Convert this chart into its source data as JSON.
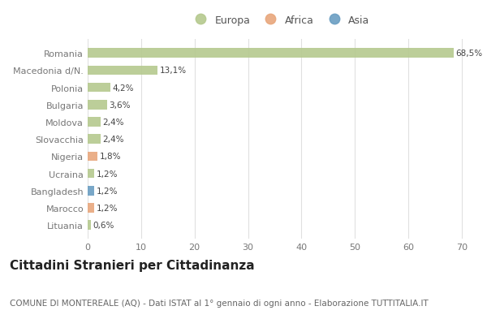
{
  "categories": [
    "Romania",
    "Macedonia d/N.",
    "Polonia",
    "Bulgaria",
    "Moldova",
    "Slovacchia",
    "Nigeria",
    "Ucraina",
    "Bangladesh",
    "Marocco",
    "Lituania"
  ],
  "values": [
    68.5,
    13.1,
    4.2,
    3.6,
    2.4,
    2.4,
    1.8,
    1.2,
    1.2,
    1.2,
    0.6
  ],
  "labels": [
    "68,5%",
    "13,1%",
    "4,2%",
    "3,6%",
    "2,4%",
    "2,4%",
    "1,8%",
    "1,2%",
    "1,2%",
    "1,2%",
    "0,6%"
  ],
  "colors": [
    "#b5c98e",
    "#b5c98e",
    "#b5c98e",
    "#b5c98e",
    "#b5c98e",
    "#b5c98e",
    "#e8a77c",
    "#b5c98e",
    "#6a9ec2",
    "#e8a77c",
    "#b5c98e"
  ],
  "legend_labels": [
    "Europa",
    "Africa",
    "Asia"
  ],
  "legend_colors": [
    "#b5c98e",
    "#e8a77c",
    "#6a9ec2"
  ],
  "xlim": [
    0,
    72
  ],
  "xticks": [
    0,
    10,
    20,
    30,
    40,
    50,
    60,
    70
  ],
  "title": "Cittadini Stranieri per Cittadinanza",
  "subtitle": "COMUNE DI MONTEREALE (AQ) - Dati ISTAT al 1° gennaio di ogni anno - Elaborazione TUTTITALIA.IT",
  "bg_color": "#ffffff",
  "plot_bg_color": "#ffffff",
  "grid_color": "#e0e0e0",
  "bar_height": 0.55,
  "title_fontsize": 11,
  "subtitle_fontsize": 7.5,
  "label_fontsize": 7.5,
  "tick_fontsize": 8,
  "legend_fontsize": 9
}
